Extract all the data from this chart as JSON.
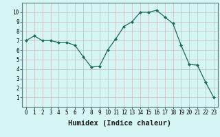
{
  "xlabel": "Humidex (Indice chaleur)",
  "x": [
    0,
    1,
    2,
    3,
    4,
    5,
    6,
    7,
    8,
    9,
    10,
    11,
    12,
    13,
    14,
    15,
    16,
    17,
    18,
    19,
    20,
    21,
    22,
    23
  ],
  "y": [
    7.0,
    7.5,
    7.0,
    7.0,
    6.8,
    6.8,
    6.5,
    5.3,
    4.2,
    4.3,
    6.0,
    7.2,
    8.5,
    9.0,
    10.0,
    10.0,
    10.2,
    9.5,
    8.8,
    6.5,
    4.5,
    4.4,
    2.6,
    1.0
  ],
  "line_color": "#1a6b5a",
  "marker": "D",
  "marker_size": 2.0,
  "bg_color": "#d6f5f5",
  "grid_color": "#c8b8b8",
  "ylim": [
    0,
    11
  ],
  "xlim": [
    -0.5,
    23.5
  ],
  "yticks": [
    1,
    2,
    3,
    4,
    5,
    6,
    7,
    8,
    9,
    10
  ],
  "xticks": [
    0,
    1,
    2,
    3,
    4,
    5,
    6,
    7,
    8,
    9,
    10,
    11,
    12,
    13,
    14,
    15,
    16,
    17,
    18,
    19,
    20,
    21,
    22,
    23
  ],
  "tick_fontsize": 5.5,
  "label_fontsize": 7.5,
  "label_fontweight": "bold"
}
